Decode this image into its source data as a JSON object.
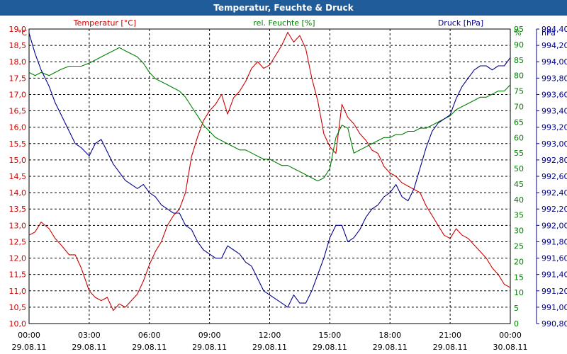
{
  "window": {
    "title": "Temperatur, Feuchte & Druck"
  },
  "colors": {
    "temperature": "#cc0000",
    "humidity": "#008000",
    "pressure": "#00008b",
    "titlebar": "#1f5c99",
    "grid": "#000000"
  },
  "chart_data": {
    "type": "line",
    "title": "Temperatur, Feuchte & Druck",
    "grid": true,
    "x": {
      "ticks": [
        {
          "time": "00:00",
          "date": "29.08.11"
        },
        {
          "time": "03:00",
          "date": "29.08.11"
        },
        {
          "time": "06:00",
          "date": "29.08.11"
        },
        {
          "time": "09:00",
          "date": "29.08.11"
        },
        {
          "time": "12:00",
          "date": "29.08.11"
        },
        {
          "time": "15:00",
          "date": "29.08.11"
        },
        {
          "time": "18:00",
          "date": "29.08.11"
        },
        {
          "time": "21:00",
          "date": "29.08.11"
        },
        {
          "time": "00:00",
          "date": "30.08.11"
        }
      ],
      "range_hours": [
        0,
        24
      ]
    },
    "axes": {
      "temperature": {
        "unit": "°C",
        "min": 10.0,
        "max": 19.0,
        "ticks": [
          "10,0",
          "10,5",
          "11,0",
          "11,5",
          "12,0",
          "12,5",
          "13,0",
          "13,5",
          "14,0",
          "14,5",
          "15,0",
          "15,5",
          "16,0",
          "16,5",
          "17,0",
          "17,5",
          "18,0",
          "18,5",
          "19,0"
        ]
      },
      "humidity": {
        "unit": "%",
        "min": 0,
        "max": 95,
        "ticks": [
          "0",
          "5",
          "10",
          "15",
          "20",
          "25",
          "30",
          "35",
          "40",
          "45",
          "50",
          "55",
          "60",
          "65",
          "70",
          "75",
          "80",
          "85",
          "90",
          "95"
        ]
      },
      "pressure": {
        "unit": "hPa",
        "min": 990.8,
        "max": 994.4,
        "ticks": [
          "990,80",
          "991,00",
          "991,20",
          "991,40",
          "991,60",
          "991,80",
          "992,00",
          "992,20",
          "992,40",
          "992,60",
          "992,80",
          "993,00",
          "993,20",
          "993,40",
          "993,60",
          "993,80",
          "994,00",
          "994,20",
          "994,40"
        ]
      }
    },
    "series": [
      {
        "name": "Temperatur [°C]",
        "axis": "temperature",
        "x": [
          0,
          0.3,
          0.6,
          1,
          1.3,
          1.6,
          2,
          2.3,
          2.6,
          3,
          3.3,
          3.6,
          3.9,
          4.2,
          4.5,
          4.8,
          5.1,
          5.4,
          5.7,
          6,
          6.3,
          6.6,
          6.9,
          7.2,
          7.5,
          7.8,
          8.1,
          8.4,
          8.7,
          9,
          9.3,
          9.6,
          9.9,
          10.2,
          10.5,
          10.8,
          11.1,
          11.4,
          11.7,
          12,
          12.3,
          12.6,
          12.9,
          13.2,
          13.5,
          13.8,
          14.1,
          14.4,
          14.7,
          15,
          15.3,
          15.6,
          15.9,
          16.2,
          16.5,
          16.8,
          17.1,
          17.4,
          17.7,
          18,
          18.3,
          18.6,
          18.9,
          19.2,
          19.5,
          19.8,
          20.1,
          20.4,
          20.7,
          21,
          21.3,
          21.6,
          21.9,
          22.2,
          22.5,
          22.8,
          23.1,
          23.4,
          23.7,
          24
        ],
        "values": [
          12.7,
          12.8,
          13.1,
          12.9,
          12.6,
          12.4,
          12.1,
          12.1,
          11.7,
          11.0,
          10.8,
          10.7,
          10.8,
          10.4,
          10.6,
          10.5,
          10.7,
          10.9,
          11.3,
          11.8,
          12.2,
          12.5,
          13.0,
          13.3,
          13.5,
          14.0,
          15.1,
          15.7,
          16.2,
          16.5,
          16.7,
          17.0,
          16.4,
          16.9,
          17.1,
          17.4,
          17.8,
          18.0,
          17.8,
          17.9,
          18.2,
          18.5,
          18.9,
          18.6,
          18.8,
          18.4,
          17.5,
          16.8,
          15.8,
          15.4,
          15.2,
          16.7,
          16.3,
          16.1,
          15.8,
          15.6,
          15.3,
          15.2,
          14.8,
          14.6,
          14.5,
          14.3,
          14.2,
          14.1,
          14.0,
          13.6,
          13.3,
          13.0,
          12.7,
          12.6,
          12.9,
          12.7,
          12.6,
          12.4,
          12.2,
          12.0,
          11.7,
          11.5,
          11.2,
          11.1
        ]
      },
      {
        "name": "rel. Feuchte [%]",
        "axis": "humidity",
        "x": [
          0,
          0.3,
          0.6,
          1,
          1.3,
          1.6,
          2,
          2.3,
          2.6,
          3,
          3.3,
          3.6,
          3.9,
          4.2,
          4.5,
          4.8,
          5.1,
          5.4,
          5.7,
          6,
          6.3,
          6.6,
          6.9,
          7.2,
          7.5,
          7.8,
          8.1,
          8.4,
          8.7,
          9,
          9.3,
          9.6,
          9.9,
          10.2,
          10.5,
          10.8,
          11.1,
          11.4,
          11.7,
          12,
          12.3,
          12.6,
          12.9,
          13.2,
          13.5,
          13.8,
          14.1,
          14.4,
          14.7,
          15,
          15.3,
          15.6,
          15.9,
          16.2,
          16.5,
          16.8,
          17.1,
          17.4,
          17.7,
          18,
          18.3,
          18.6,
          18.9,
          19.2,
          19.5,
          19.8,
          20.1,
          20.4,
          20.7,
          21,
          21.3,
          21.6,
          21.9,
          22.2,
          22.5,
          22.8,
          23.1,
          23.4,
          23.7,
          24
        ],
        "values": [
          81,
          80,
          81,
          80,
          81,
          82,
          83,
          83,
          83,
          84,
          85,
          86,
          87,
          88,
          89,
          88,
          87,
          86,
          84,
          81,
          79,
          78,
          77,
          76,
          75,
          73,
          70,
          67,
          64,
          62,
          60,
          59,
          58,
          57,
          56,
          56,
          55,
          54,
          53,
          53,
          52,
          51,
          51,
          50,
          49,
          48,
          47,
          46,
          47,
          50,
          60,
          64,
          63,
          55,
          56,
          57,
          58,
          59,
          60,
          60,
          61,
          61,
          62,
          62,
          63,
          63,
          64,
          65,
          66,
          67,
          69,
          70,
          71,
          72,
          73,
          73,
          74,
          75,
          75,
          77
        ]
      },
      {
        "name": "Druck [hPa]",
        "axis": "pressure",
        "x": [
          0,
          0.3,
          0.6,
          1,
          1.3,
          1.6,
          2,
          2.3,
          2.6,
          3,
          3.3,
          3.6,
          3.9,
          4.2,
          4.5,
          4.8,
          5.1,
          5.4,
          5.7,
          6,
          6.3,
          6.6,
          6.9,
          7.2,
          7.5,
          7.8,
          8.1,
          8.4,
          8.7,
          9,
          9.3,
          9.6,
          9.9,
          10.2,
          10.5,
          10.8,
          11.1,
          11.4,
          11.7,
          12,
          12.3,
          12.6,
          12.9,
          13.2,
          13.5,
          13.8,
          14.1,
          14.4,
          14.7,
          15,
          15.3,
          15.6,
          15.9,
          16.2,
          16.5,
          16.8,
          17.1,
          17.4,
          17.7,
          18,
          18.3,
          18.6,
          18.9,
          19.2,
          19.5,
          19.8,
          20.1,
          20.4,
          20.7,
          21,
          21.3,
          21.6,
          21.9,
          22.2,
          22.5,
          22.8,
          23.1,
          23.4,
          23.7,
          24
        ],
        "values": [
          994.35,
          994.1,
          993.9,
          993.7,
          993.5,
          993.35,
          993.15,
          993.0,
          992.95,
          992.85,
          993.0,
          993.05,
          992.9,
          992.75,
          992.65,
          992.55,
          992.5,
          992.45,
          992.5,
          992.4,
          992.35,
          992.25,
          992.2,
          992.15,
          992.15,
          992.0,
          991.95,
          991.8,
          991.7,
          991.65,
          991.6,
          991.6,
          991.75,
          991.7,
          991.65,
          991.55,
          991.5,
          991.35,
          991.2,
          991.15,
          991.1,
          991.05,
          991.0,
          991.15,
          991.05,
          991.05,
          991.2,
          991.4,
          991.6,
          991.85,
          992.0,
          992.0,
          991.8,
          991.85,
          991.95,
          992.1,
          992.2,
          992.25,
          992.35,
          992.4,
          992.5,
          992.35,
          992.3,
          992.45,
          992.7,
          992.95,
          993.15,
          993.25,
          993.3,
          993.35,
          993.55,
          993.7,
          993.8,
          993.9,
          993.95,
          993.95,
          993.9,
          993.95,
          993.95,
          994.05
        ]
      }
    ]
  }
}
